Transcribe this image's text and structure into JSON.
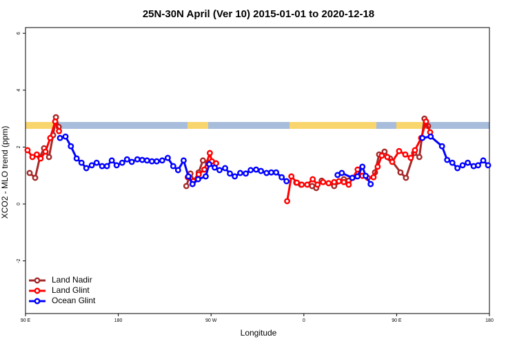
{
  "chart_data": {
    "type": "line",
    "title": "25N-30N April (Ver 10)   2015-01-01 to 2020-12-18",
    "xlabel": "Longitude",
    "ylabel": "XCO2 - MLO trend (ppm)",
    "xlim": [
      90,
      540
    ],
    "ylim": [
      -3.85,
      6.2
    ],
    "xticks": [
      {
        "value": 90,
        "label": "90 E"
      },
      180,
      {
        "value": 270,
        "label": "90 W"
      },
      {
        "value": 360,
        "label": "0"
      },
      {
        "value": 450,
        "label": "90 E"
      },
      {
        "value": 540,
        "label": "180"
      }
    ],
    "yticks": [
      -2,
      0,
      2,
      4,
      6
    ],
    "legend": "bottom-left",
    "series": [
      {
        "name": "Land Nadir",
        "color": "#a52a2a",
        "x": [
          94,
          99.4,
          104,
          108,
          112.8,
          116.8,
          119.5,
          122.2,
          null,
          246,
          250,
          253.4,
          258,
          262.1,
          266.8,
          null,
          352.6,
          357.2,
          368,
          372,
          377.3,
          389.4,
          398.8,
          403.5,
          null,
          429,
          433,
          438.3,
          443.6,
          453.7,
          459,
          467,
          472,
          477,
          480.5
        ],
        "values": [
          1.09,
          0.92,
          1.65,
          1.96,
          1.65,
          2.42,
          3.05,
          2.71,
          null,
          0.63,
          1.07,
          0.82,
          1.11,
          1.53,
          1.45,
          null,
          0.75,
          0.68,
          0.63,
          0.56,
          0.82,
          0.63,
          0.87,
          0.82,
          null,
          1.11,
          1.74,
          1.84,
          1.6,
          1.11,
          0.92,
          1.79,
          1.65,
          3.0,
          2.74
        ]
      },
      {
        "name": "Land Glint",
        "color": "#ff0000",
        "x": [
          92,
          96.7,
          101,
          104.7,
          109.4,
          114,
          118.8,
          122.5,
          null,
          247.4,
          252.8,
          258,
          263.5,
          268.8,
          270.8,
          274.9,
          null,
          343.8,
          347.9,
          353.2,
          357.9,
          363.3,
          368.6,
          373.3,
          378.7,
          384,
          389.4,
          394,
          398.8,
          403.5,
          407.5,
          412.2,
          416.8,
          422,
          427.6,
          431.6,
          435.6,
          441,
          445.7,
          452.4,
          458.4,
          463.7,
          467.8,
          473.8,
          478.5,
          482.5
        ],
        "values": [
          1.89,
          1.65,
          1.74,
          1.6,
          1.84,
          2.32,
          2.9,
          2.56,
          null,
          0.94,
          0.8,
          1.04,
          1.21,
          1.79,
          1.5,
          1.43,
          null,
          0.1,
          0.97,
          0.75,
          0.68,
          0.68,
          0.87,
          0.68,
          0.77,
          0.73,
          0.77,
          0.8,
          0.77,
          0.68,
          0.92,
          1.21,
          0.99,
          0.92,
          0.94,
          1.31,
          1.7,
          1.65,
          1.48,
          1.86,
          1.74,
          1.62,
          1.89,
          2.32,
          2.9,
          2.52
        ]
      },
      {
        "name": "Ocean Glint",
        "color": "#0000ff",
        "x": [
          123.5,
          128.8,
          134,
          139.6,
          144.3,
          149,
          154.3,
          159,
          164.3,
          169,
          173.7,
          178.4,
          183.8,
          188.5,
          193.1,
          198.5,
          203.2,
          207.9,
          212.6,
          217.3,
          222.6,
          228,
          233.3,
          238,
          243.4,
          248,
          252,
          257.4,
          264.8,
          268.2,
          273.5,
          278.2,
          283.6,
          288.3,
          293,
          298.3,
          303.7,
          308.4,
          313.7,
          318.4,
          323.8,
          328.4,
          333.1,
          338.5,
          343.2,
          null,
          392.7,
          396.8,
          407,
          412,
          416.8,
          420,
          424.8,
          null,
          475,
          483,
          494,
          499,
          504,
          509,
          514,
          519,
          524.7,
          529,
          534,
          538.7
        ],
        "values": [
          2.32,
          2.37,
          2.03,
          1.6,
          1.45,
          1.26,
          1.36,
          1.45,
          1.33,
          1.33,
          1.53,
          1.36,
          1.45,
          1.57,
          1.48,
          1.57,
          1.55,
          1.53,
          1.5,
          1.5,
          1.53,
          1.62,
          1.33,
          1.19,
          1.53,
          0.97,
          0.7,
          0.87,
          0.97,
          1.4,
          1.28,
          1.19,
          1.26,
          1.07,
          0.97,
          1.09,
          1.07,
          1.19,
          1.21,
          1.16,
          1.09,
          1.11,
          1.11,
          0.94,
          0.8,
          null,
          1.02,
          1.09,
          0.92,
          0.97,
          1.31,
          0.99,
          0.7,
          null,
          2.32,
          2.37,
          2.03,
          1.55,
          1.45,
          1.26,
          1.36,
          1.45,
          1.33,
          1.36,
          1.53,
          1.36
        ]
      }
    ]
  }
}
